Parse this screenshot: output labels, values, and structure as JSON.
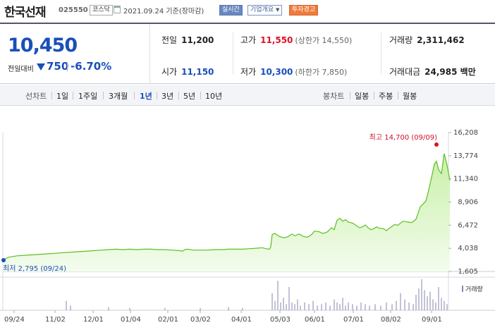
{
  "header": {
    "name": "한국선재",
    "code": "025550",
    "market": "코스닥",
    "date_text": "2021.09.24  기준(장마감)",
    "realtime": "실시간",
    "corp_info": "기업개요",
    "warning": "투자경고"
  },
  "quote": {
    "price": "10,450",
    "compare_label": "전일대비",
    "change": "750",
    "change_pct": "-6.70%",
    "prev_label": "전일",
    "prev": "11,200",
    "high_label": "고가",
    "high": "11,550",
    "upper_limit": "(상한가 14,550)",
    "volume_label": "거래량",
    "volume": "2,311,462",
    "open_label": "시가",
    "open": "11,150",
    "low_label": "저가",
    "low": "10,300",
    "lower_limit": "(하한가 7,850)",
    "amount_label": "거래대금",
    "amount": "24,985 백만"
  },
  "periods": {
    "line_label": "선차트",
    "line_items": [
      "1일",
      "1주일",
      "3개월",
      "1년",
      "3년",
      "5년",
      "10년"
    ],
    "selected": "1년",
    "candle_label": "봉차트",
    "candle_items": [
      "일봉",
      "주봉",
      "월봉"
    ]
  },
  "colors": {
    "up": "#e0102a",
    "down": "#1a4fba",
    "line": "#5cbf22",
    "fill_top": "#c8f0a8",
    "fill_bottom": "#f4fcee",
    "volume": "#8686b0"
  },
  "chart_data": {
    "type": "area",
    "ylim": [
      1605,
      16208
    ],
    "y_ticks": [
      "16,208",
      "13,774",
      "11,340",
      "8,906",
      "6,472",
      "4,038",
      "1,605"
    ],
    "x_ticks": [
      "09/24",
      "11/02",
      "12/01",
      "01/04",
      "02/01",
      "03/02",
      "04/01",
      "05/03",
      "06/01",
      "07/01",
      "08/02",
      "09/01"
    ],
    "high_label": "최고 14,700 (09/09)",
    "low_label": "최저 2,795 (09/24)",
    "volume_label": "거래량",
    "series_points": [
      [
        0,
        2795
      ],
      [
        8,
        3100
      ],
      [
        20,
        3250
      ],
      [
        40,
        3350
      ],
      [
        60,
        3450
      ],
      [
        80,
        3550
      ],
      [
        100,
        3650
      ],
      [
        120,
        3750
      ],
      [
        140,
        3850
      ],
      [
        150,
        3900
      ],
      [
        160,
        3950
      ],
      [
        170,
        3900
      ],
      [
        180,
        3950
      ],
      [
        190,
        3900
      ],
      [
        200,
        3950
      ],
      [
        210,
        3950
      ],
      [
        220,
        3900
      ],
      [
        230,
        3900
      ],
      [
        240,
        3850
      ],
      [
        250,
        3800
      ],
      [
        255,
        3750
      ],
      [
        258,
        3900
      ],
      [
        262,
        3950
      ],
      [
        270,
        3850
      ],
      [
        280,
        3850
      ],
      [
        290,
        3850
      ],
      [
        300,
        3900
      ],
      [
        310,
        3900
      ],
      [
        320,
        3950
      ],
      [
        330,
        3950
      ],
      [
        340,
        3950
      ],
      [
        350,
        4000
      ],
      [
        360,
        4050
      ],
      [
        368,
        4100
      ],
      [
        373,
        4000
      ],
      [
        378,
        3950
      ],
      [
        380,
        4200
      ],
      [
        382,
        5500
      ],
      [
        386,
        5600
      ],
      [
        392,
        5300
      ],
      [
        398,
        5150
      ],
      [
        404,
        5250
      ],
      [
        410,
        5550
      ],
      [
        414,
        5350
      ],
      [
        420,
        5550
      ],
      [
        426,
        5300
      ],
      [
        432,
        5200
      ],
      [
        438,
        5500
      ],
      [
        442,
        5850
      ],
      [
        448,
        5800
      ],
      [
        454,
        5600
      ],
      [
        460,
        5750
      ],
      [
        466,
        6200
      ],
      [
        470,
        6000
      ],
      [
        474,
        7000
      ],
      [
        478,
        7200
      ],
      [
        482,
        6900
      ],
      [
        486,
        7050
      ],
      [
        490,
        6800
      ],
      [
        496,
        6700
      ],
      [
        500,
        6500
      ],
      [
        506,
        6200
      ],
      [
        510,
        6300
      ],
      [
        514,
        6500
      ],
      [
        518,
        6200
      ],
      [
        522,
        6000
      ],
      [
        526,
        6100
      ],
      [
        530,
        6300
      ],
      [
        534,
        6150
      ],
      [
        540,
        6100
      ],
      [
        544,
        5900
      ],
      [
        548,
        6150
      ],
      [
        552,
        6350
      ],
      [
        556,
        6550
      ],
      [
        560,
        6450
      ],
      [
        564,
        6700
      ],
      [
        568,
        6900
      ],
      [
        574,
        6800
      ],
      [
        580,
        6750
      ],
      [
        586,
        7100
      ],
      [
        592,
        8400
      ],
      [
        596,
        8700
      ],
      [
        600,
        9000
      ],
      [
        604,
        10200
      ],
      [
        608,
        11500
      ],
      [
        612,
        12900
      ],
      [
        615,
        13200
      ],
      [
        618,
        12300
      ],
      [
        622,
        11900
      ],
      [
        626,
        14000
      ],
      [
        630,
        12800
      ],
      [
        634,
        11200
      ]
    ],
    "volume_bars": [
      [
        90,
        12
      ],
      [
        96,
        6
      ],
      [
        150,
        4
      ],
      [
        180,
        3
      ],
      [
        230,
        3
      ],
      [
        280,
        3
      ],
      [
        320,
        4
      ],
      [
        340,
        3
      ],
      [
        382,
        22
      ],
      [
        386,
        12
      ],
      [
        390,
        38
      ],
      [
        394,
        10
      ],
      [
        398,
        16
      ],
      [
        402,
        8
      ],
      [
        406,
        30
      ],
      [
        410,
        10
      ],
      [
        414,
        8
      ],
      [
        418,
        14
      ],
      [
        422,
        6
      ],
      [
        428,
        10
      ],
      [
        434,
        8
      ],
      [
        440,
        12
      ],
      [
        446,
        6
      ],
      [
        452,
        8
      ],
      [
        458,
        10
      ],
      [
        464,
        6
      ],
      [
        470,
        14
      ],
      [
        474,
        10
      ],
      [
        478,
        8
      ],
      [
        482,
        16
      ],
      [
        486,
        6
      ],
      [
        490,
        10
      ],
      [
        496,
        8
      ],
      [
        502,
        6
      ],
      [
        508,
        10
      ],
      [
        514,
        8
      ],
      [
        520,
        6
      ],
      [
        528,
        8
      ],
      [
        536,
        6
      ],
      [
        544,
        10
      ],
      [
        552,
        8
      ],
      [
        558,
        12
      ],
      [
        564,
        22
      ],
      [
        570,
        14
      ],
      [
        576,
        10
      ],
      [
        582,
        8
      ],
      [
        586,
        20
      ],
      [
        590,
        28
      ],
      [
        594,
        40
      ],
      [
        598,
        26
      ],
      [
        602,
        18
      ],
      [
        606,
        24
      ],
      [
        610,
        14
      ],
      [
        614,
        10
      ],
      [
        618,
        30
      ],
      [
        622,
        16
      ],
      [
        626,
        12
      ],
      [
        630,
        8
      ]
    ]
  }
}
